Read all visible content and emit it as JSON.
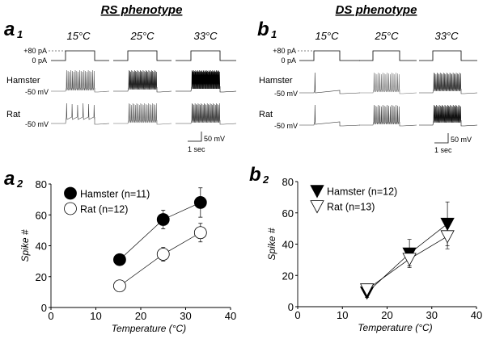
{
  "panels": {
    "a1": {
      "label": "a",
      "sub": "1",
      "title": "RS phenotype",
      "temps": [
        "15°C",
        "25°C",
        "33°C"
      ],
      "current_labels": [
        "+80 pA",
        "0 pA"
      ],
      "rows": [
        {
          "name": "Hamster",
          "vm": "-50 mV"
        },
        {
          "name": "Rat",
          "vm": "-50 mV"
        }
      ],
      "scale_v": "50 mV",
      "scale_t": "1 sec"
    },
    "b1": {
      "label": "b",
      "sub": "1",
      "title": "DS phenotype",
      "temps": [
        "15°C",
        "25°C",
        "33°C"
      ],
      "current_labels": [
        "+80 pA",
        "0 pA"
      ],
      "rows": [
        {
          "name": "Hamster",
          "vm": "-50 mV"
        },
        {
          "name": "Rat",
          "vm": "-50 mV"
        }
      ],
      "scale_v": "50 mV",
      "scale_t": "1 sec"
    },
    "a2": {
      "label": "a",
      "sub": "2"
    },
    "b2": {
      "label": "b",
      "sub": "2"
    }
  },
  "chart_data": [
    {
      "id": "a2",
      "type": "scatter",
      "title": "",
      "xlabel": "Temperature (°C)",
      "ylabel": "Spike #",
      "xlim": [
        0,
        40
      ],
      "ylim": [
        0,
        80
      ],
      "xticks": [
        0,
        10,
        20,
        30,
        40
      ],
      "yticks": [
        0,
        20,
        40,
        60,
        80
      ],
      "legend": "top-left",
      "marker": "circle",
      "series": [
        {
          "name": "Hamster (n=11)",
          "fill": "#000000",
          "x": [
            15.3,
            25,
            33.3
          ],
          "y": [
            31,
            57,
            68
          ],
          "err": [
            1,
            6,
            9.5
          ]
        },
        {
          "name": "Rat (n=12)",
          "fill": "#ffffff",
          "x": [
            15.3,
            25,
            33.3
          ],
          "y": [
            14,
            34.5,
            48.5
          ],
          "err": [
            1,
            4.5,
            6
          ]
        }
      ]
    },
    {
      "id": "b2",
      "type": "scatter",
      "title": "",
      "xlabel": "Temperature (°C)",
      "ylabel": "Spike #",
      "xlim": [
        0,
        40
      ],
      "ylim": [
        0,
        80
      ],
      "xticks": [
        0,
        10,
        20,
        30,
        40
      ],
      "yticks": [
        0,
        20,
        40,
        60,
        80
      ],
      "legend": "top-left",
      "marker": "triangle-down",
      "series": [
        {
          "name": "Hamster (n=12)",
          "fill": "#000000",
          "x": [
            15.5,
            25,
            33.5
          ],
          "y": [
            9,
            34,
            53
          ],
          "err": [
            3,
            9,
            14
          ]
        },
        {
          "name": "Rat (n=13)",
          "fill": "#ffffff",
          "x": [
            15.5,
            25,
            33.5
          ],
          "y": [
            11,
            30.5,
            45
          ],
          "err": [
            1,
            4.5,
            8
          ]
        }
      ]
    }
  ]
}
